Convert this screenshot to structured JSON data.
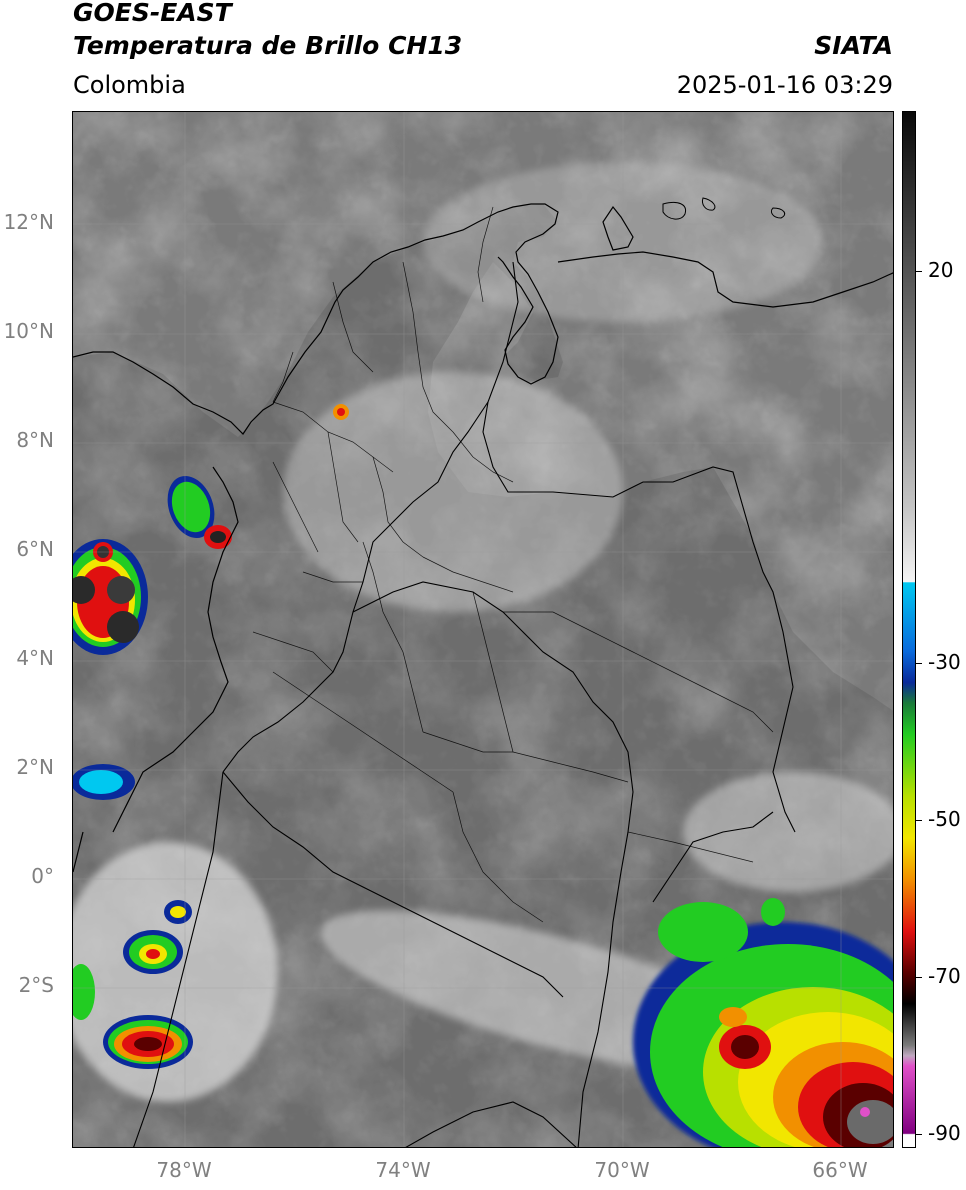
{
  "header": {
    "title_line1": "GOES-EAST",
    "title_line2": "Temperatura de Brillo CH13",
    "brand": "SIATA",
    "region": "Colombia",
    "timestamp": "2025-01-16 03:29"
  },
  "axes": {
    "lat_labels": [
      "12°N",
      "10°N",
      "8°N",
      "6°N",
      "4°N",
      "2°N",
      "0°",
      "2°S"
    ],
    "lon_labels": [
      "78°W",
      "74°W",
      "70°W",
      "66°W"
    ]
  },
  "colorbar": {
    "tick_labels": [
      "20",
      "-30",
      "-50",
      "-70",
      "-90"
    ],
    "colors": {
      "warm_gray_top": "#0a0a0a",
      "gray_mid": "#8c8c8c",
      "white": "#f4f4f4",
      "cyan": "#00c8f0",
      "blue": "#0a2a9a",
      "green": "#22cc22",
      "yellow": "#f2e600",
      "orange": "#f29000",
      "red": "#e01010",
      "darkred": "#5a0000",
      "black": "#000000",
      "magenta": "#e050c8",
      "purple": "#800080"
    }
  }
}
